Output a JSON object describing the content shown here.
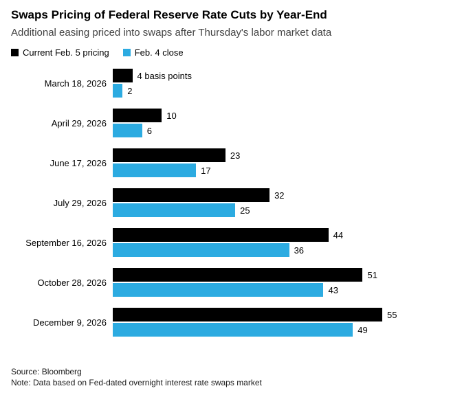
{
  "header": {
    "title": "Swaps Pricing of Federal Reserve Rate Cuts by Year-End",
    "subtitle": "Additional easing priced into swaps after Thursday's labor market data"
  },
  "legend": [
    {
      "label": "Current Feb. 5 pricing",
      "color": "#000000"
    },
    {
      "label": "Feb. 4 close",
      "color": "#2CABE1"
    }
  ],
  "chart_data": {
    "type": "bar",
    "orientation": "horizontal",
    "title": "Swaps Pricing of Federal Reserve Rate Cuts by Year-End",
    "subtitle": "Additional easing priced into swaps after Thursday's labor market data",
    "unit": "basis points",
    "xlim": [
      0,
      55
    ],
    "grid": false,
    "legend_position": "top",
    "categories": [
      "March 18, 2026",
      "April 29, 2026",
      "June 17, 2026",
      "July 29, 2026",
      "September 16, 2026",
      "October 28, 2026",
      "December 9, 2026"
    ],
    "series": [
      {
        "name": "Current Feb. 5 pricing",
        "color": "#000000",
        "values": [
          4,
          10,
          23,
          32,
          44,
          51,
          55
        ],
        "labels": [
          "4 basis points",
          "10",
          "23",
          "32",
          "44",
          "51",
          "55"
        ]
      },
      {
        "name": "Feb. 4 close",
        "color": "#2CABE1",
        "values": [
          2,
          6,
          17,
          25,
          36,
          43,
          49
        ],
        "labels": [
          "2",
          "6",
          "17",
          "25",
          "36",
          "43",
          "49"
        ]
      }
    ]
  },
  "footer": {
    "source": "Source: Bloomberg",
    "note": "Note: Data based on Fed-dated overnight interest rate swaps market"
  }
}
